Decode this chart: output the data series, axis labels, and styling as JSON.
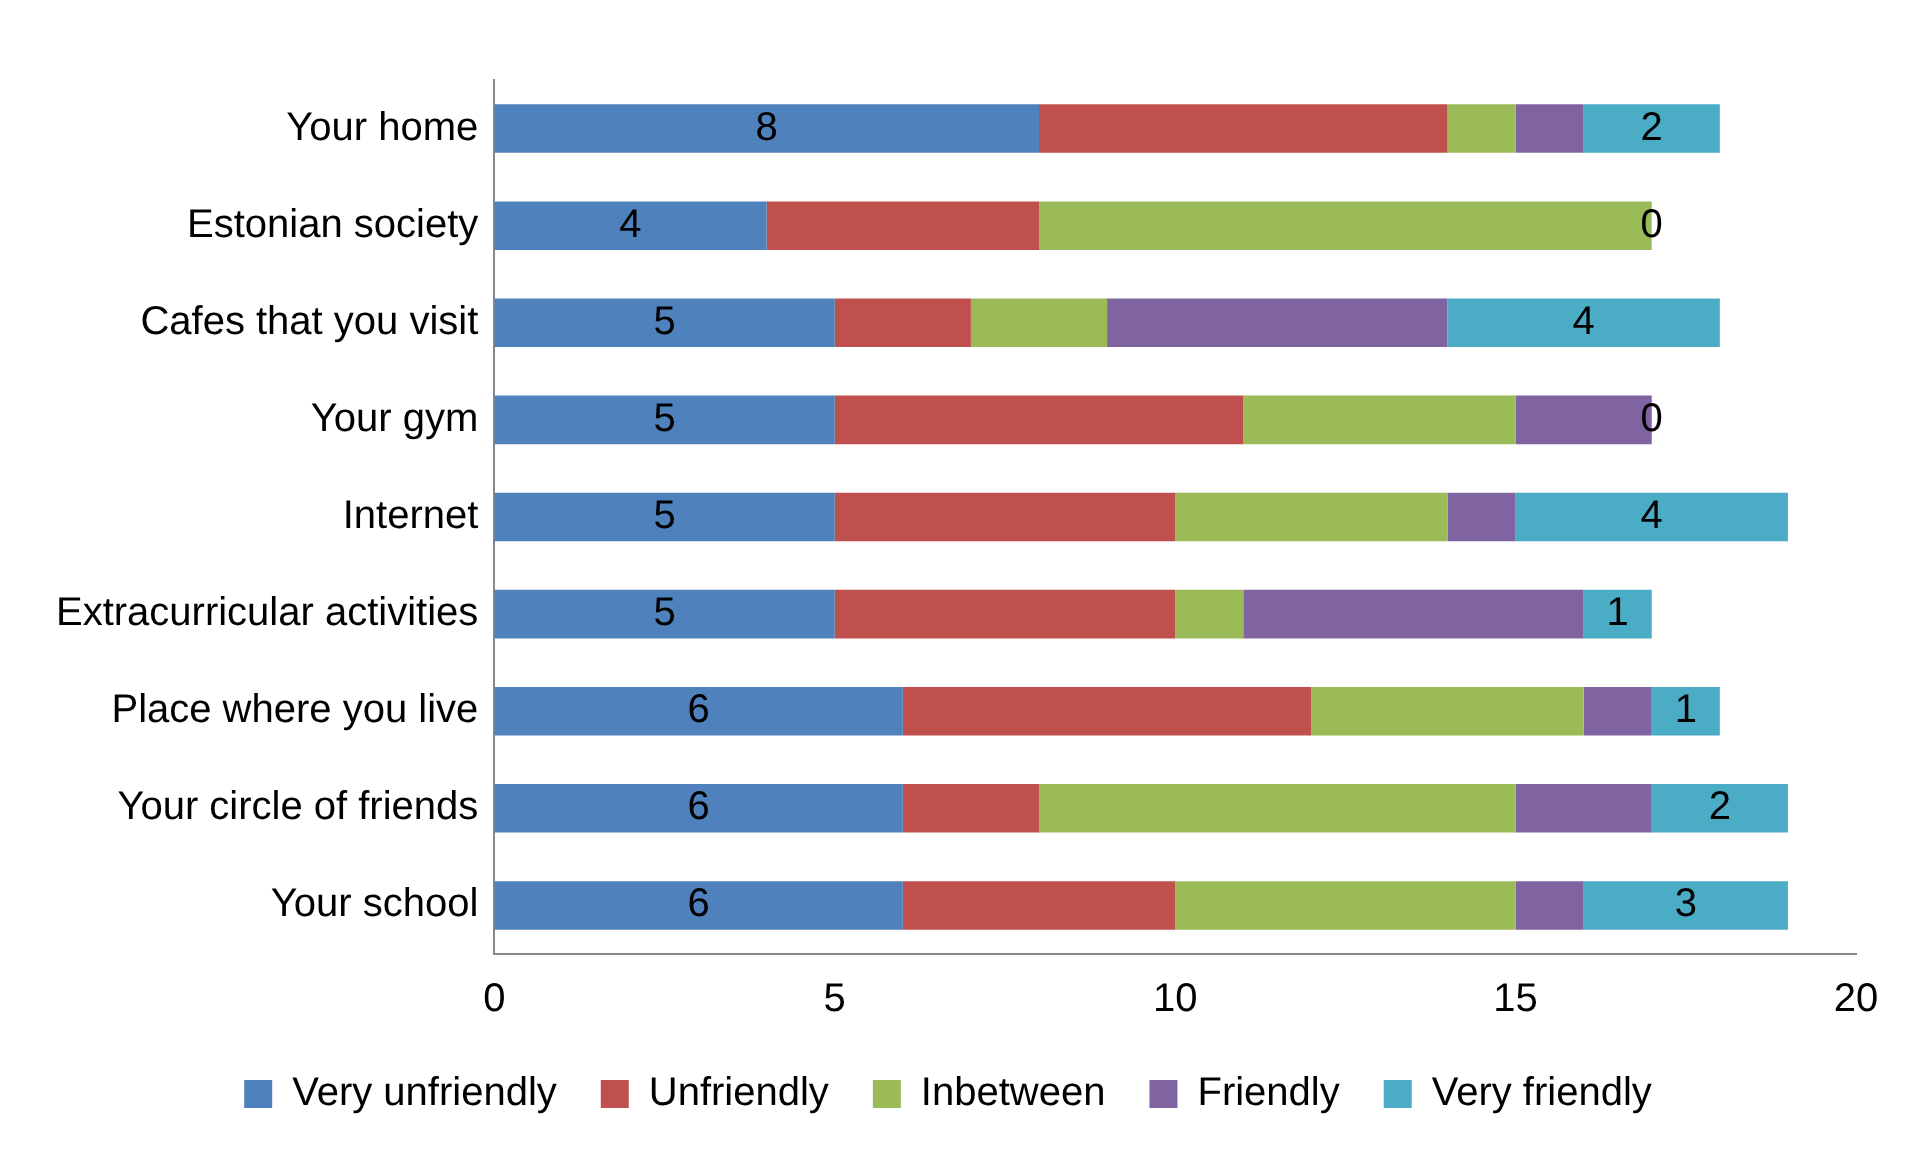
{
  "chart_data": {
    "type": "bar",
    "orientation": "horizontal",
    "stacked": true,
    "categories": [
      "Your home",
      "Estonian society",
      "Cafes that you visit",
      "Your gym",
      "Internet",
      "Extracurricular activities",
      "Place where you live",
      "Your circle of friends",
      "Your school"
    ],
    "series": [
      {
        "name": "Very unfriendly",
        "color": "#4f81bd",
        "values": [
          8,
          4,
          5,
          5,
          5,
          5,
          6,
          6,
          6
        ],
        "value_labels": [
          "8",
          "4",
          "5",
          "5",
          "5",
          "5",
          "6",
          "6",
          "6"
        ]
      },
      {
        "name": "Unfriendly",
        "color": "#c0504d",
        "values": [
          6,
          4,
          2,
          6,
          5,
          5,
          6,
          2,
          4
        ]
      },
      {
        "name": "Inbetween",
        "color": "#9bbb59",
        "values": [
          1,
          9,
          2,
          4,
          4,
          1,
          4,
          7,
          5
        ]
      },
      {
        "name": "Friendly",
        "color": "#8064a2",
        "values": [
          1,
          0,
          5,
          2,
          1,
          5,
          1,
          2,
          1
        ]
      },
      {
        "name": "Very friendly",
        "color": "#4bacc6",
        "values": [
          2,
          0,
          4,
          0,
          4,
          1,
          1,
          2,
          3
        ],
        "value_labels": [
          "2",
          "0",
          "4",
          "0",
          "4",
          "1",
          "1",
          "2",
          "3"
        ]
      }
    ],
    "xlim": [
      0,
      20
    ],
    "xticks": [
      0,
      5,
      10,
      15,
      20
    ],
    "grid": false,
    "legend": "bottom"
  }
}
